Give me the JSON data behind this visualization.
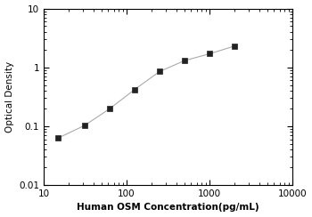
{
  "x_data": [
    15,
    31.25,
    62.5,
    125,
    250,
    500,
    1000,
    2000
  ],
  "y_data": [
    0.063,
    0.103,
    0.198,
    0.42,
    0.85,
    1.3,
    1.7,
    2.3
  ],
  "xlabel": "Human OSM Concentration(pg/mL)",
  "ylabel": "Optical Density",
  "xlim": [
    10,
    10000
  ],
  "ylim": [
    0.01,
    10
  ],
  "line_color": "#aaaaaa",
  "marker_color": "#222222",
  "marker": "s",
  "marker_size": 4,
  "line_width": 0.8,
  "background_color": "#ffffff",
  "xticks": [
    10,
    100,
    1000,
    10000
  ],
  "yticks": [
    0.01,
    0.1,
    1,
    10
  ],
  "ytick_labels": [
    "0.01",
    "0.1",
    "1",
    "10"
  ],
  "xtick_labels": [
    "10",
    "100",
    "1000",
    "10000"
  ],
  "xlabel_fontsize": 7.5,
  "ylabel_fontsize": 7.5,
  "tick_labelsize": 7.5
}
